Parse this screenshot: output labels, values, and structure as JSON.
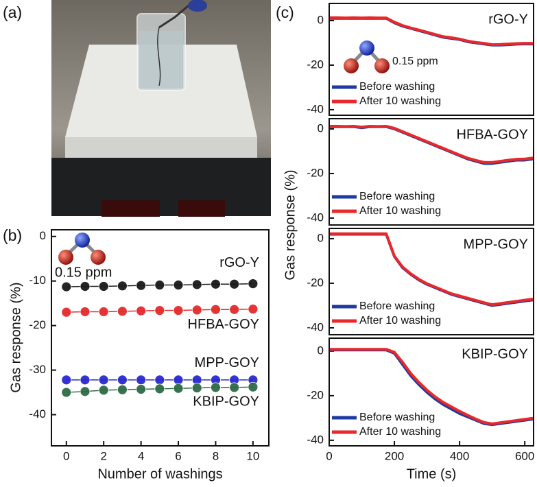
{
  "chart_data": [
    {
      "type": "image",
      "panel": "(a)"
    },
    {
      "type": "line",
      "panel": "(b)",
      "markers": true,
      "x_label": "Number of washings",
      "y_label": "Gas response (%)",
      "annotation": "0.15 ppm",
      "x": [
        0,
        1,
        2,
        3,
        4,
        5,
        6,
        7,
        8,
        9,
        10
      ],
      "xlim": [
        -0.8,
        10.85
      ],
      "xticks": [
        0,
        2,
        4,
        6,
        8,
        10
      ],
      "ylim": [
        -47,
        1.5
      ],
      "yticks": [
        0,
        -10,
        -20,
        -30,
        -40
      ],
      "series": [
        {
          "name": "rGO-Y",
          "color": "#1a1a1a",
          "values": [
            -11.3,
            -11.2,
            -11.2,
            -11.1,
            -11.0,
            -10.9,
            -10.9,
            -10.8,
            -10.7,
            -10.7,
            -10.6
          ]
        },
        {
          "name": "HFBA-GOY",
          "color": "#e52b2b",
          "values": [
            -17.0,
            -16.9,
            -16.9,
            -16.8,
            -16.7,
            -16.6,
            -16.6,
            -16.5,
            -16.4,
            -16.4,
            -16.3
          ]
        },
        {
          "name": "MPP-GOY",
          "color": "#2a2ad0",
          "values": [
            -32.2,
            -32.2,
            -32.2,
            -32.2,
            -32.2,
            -32.2,
            -32.2,
            -32.2,
            -32.2,
            -32.2,
            -32.2
          ]
        },
        {
          "name": "KBIP-GOY",
          "color": "#2e6b45",
          "values": [
            -35.0,
            -34.8,
            -34.5,
            -34.4,
            -34.3,
            -34.2,
            -34.1,
            -34.0,
            -33.9,
            -33.9,
            -33.8
          ]
        }
      ]
    },
    {
      "type": "line",
      "panel": "(c)",
      "title": "rGO-Y",
      "title_color": "#1a1a1a",
      "annotation": "0.15 ppm",
      "y_label": "Gas response (%)",
      "x": [
        0,
        25,
        50,
        75,
        100,
        125,
        150,
        175,
        200,
        225,
        250,
        275,
        300,
        325,
        350,
        375,
        400,
        425,
        450,
        475,
        500,
        525,
        550,
        575,
        600,
        625
      ],
      "xlim": [
        0,
        627
      ],
      "ylim": [
        -42.5,
        7.7
      ],
      "yticks": [
        0,
        -20,
        -40
      ],
      "series": [
        {
          "name": "Before washing",
          "color": "#1f3aa0",
          "values": [
            1,
            1,
            1,
            1,
            1,
            1,
            1,
            1,
            -1,
            -2.5,
            -3.5,
            -4.5,
            -5.5,
            -6.5,
            -7.5,
            -8,
            -8.5,
            -9.5,
            -10,
            -10.5,
            -11,
            -11,
            -10.8,
            -10.6,
            -10.5,
            -10.5
          ]
        },
        {
          "name": "After 10 washing",
          "color": "#e8282a",
          "values": [
            1.3,
            1.3,
            1.2,
            1.3,
            1.2,
            1.3,
            1.2,
            1.2,
            -0.7,
            -2.2,
            -3.3,
            -4.2,
            -5.2,
            -6.2,
            -7.2,
            -7.7,
            -8.3,
            -9.2,
            -9.8,
            -10.2,
            -10.8,
            -10.7,
            -10.5,
            -10.3,
            -10.2,
            -10.2
          ]
        }
      ]
    },
    {
      "type": "line",
      "title": "HFBA-GOY",
      "title_color": "#e52b2b",
      "x": [
        0,
        25,
        50,
        75,
        100,
        125,
        150,
        175,
        200,
        225,
        250,
        275,
        300,
        325,
        350,
        375,
        400,
        425,
        450,
        475,
        500,
        525,
        550,
        575,
        600,
        625
      ],
      "xlim": [
        0,
        627
      ],
      "ylim": [
        -43.1,
        4.6
      ],
      "yticks": [
        0,
        -20,
        -40
      ],
      "series": [
        {
          "name": "Before washing",
          "color": "#1f3aa0",
          "values": [
            1,
            1,
            1,
            1,
            0.5,
            1,
            1,
            1,
            0,
            -1.5,
            -3,
            -4.5,
            -6,
            -7.5,
            -9,
            -10.5,
            -12,
            -13.5,
            -14.5,
            -15.5,
            -15.5,
            -15,
            -14.5,
            -14,
            -14,
            -13.5
          ]
        },
        {
          "name": "After 10 washing",
          "color": "#e8282a",
          "values": [
            1.2,
            1.2,
            1.1,
            1.2,
            0.8,
            1.2,
            1.1,
            1.2,
            0.3,
            -1.2,
            -2.7,
            -4.2,
            -5.7,
            -7.2,
            -8.7,
            -10.2,
            -11.7,
            -13.1,
            -14.1,
            -15,
            -15,
            -14.5,
            -14,
            -13.6,
            -13.5,
            -13
          ]
        }
      ]
    },
    {
      "type": "line",
      "title": "MPP-GOY",
      "title_color": "#2a2ad0",
      "x": [
        0,
        25,
        50,
        75,
        100,
        125,
        150,
        175,
        200,
        225,
        250,
        275,
        300,
        325,
        350,
        375,
        400,
        425,
        450,
        475,
        500,
        525,
        550,
        575,
        600,
        625
      ],
      "xlim": [
        0,
        627
      ],
      "ylim": [
        -43.1,
        4.6
      ],
      "yticks": [
        0,
        -20,
        -40
      ],
      "series": [
        {
          "name": "Before washing",
          "color": "#1f3aa0",
          "values": [
            2,
            2,
            2,
            2,
            2,
            2,
            2,
            2,
            -8,
            -13,
            -16,
            -18.5,
            -20.5,
            -22,
            -23.5,
            -25,
            -26,
            -27,
            -28,
            -29,
            -30,
            -29.5,
            -29,
            -28.5,
            -28,
            -27.5
          ]
        },
        {
          "name": "After 10 washing",
          "color": "#e8282a",
          "values": [
            2.2,
            2.2,
            2.2,
            2.2,
            2.2,
            2.2,
            2.2,
            2.2,
            -7.8,
            -12.7,
            -15.7,
            -18.2,
            -20.2,
            -21.7,
            -23.2,
            -24.7,
            -25.7,
            -26.7,
            -27.7,
            -28.7,
            -29.6,
            -29.1,
            -28.6,
            -28.1,
            -27.6,
            -27.1
          ]
        }
      ]
    },
    {
      "type": "line",
      "title": "KBIP-GOY",
      "title_color": "#2e6b45",
      "x_label": "Time (s)",
      "x": [
        0,
        25,
        50,
        75,
        100,
        125,
        150,
        175,
        200,
        225,
        250,
        275,
        300,
        325,
        350,
        375,
        400,
        425,
        450,
        475,
        500,
        525,
        550,
        575,
        600,
        625
      ],
      "xlim": [
        0,
        627
      ],
      "xticks": [
        0,
        200,
        400,
        600
      ],
      "ylim": [
        -42.5,
        5.8
      ],
      "yticks": [
        0,
        -20,
        -40
      ],
      "series": [
        {
          "name": "Before washing",
          "color": "#1f3aa0",
          "values": [
            0.5,
            0.5,
            0.5,
            0.5,
            0.5,
            0.5,
            0.5,
            0.5,
            -1,
            -6,
            -11,
            -15,
            -18.5,
            -21.5,
            -24,
            -26,
            -28,
            -29.5,
            -31,
            -32.5,
            -33,
            -32.5,
            -32,
            -31.5,
            -31,
            -30.5
          ]
        },
        {
          "name": "After 10 washing",
          "color": "#e8282a",
          "values": [
            0.8,
            0.8,
            0.8,
            0.8,
            0.8,
            0.8,
            0.8,
            0.8,
            -0.5,
            -5,
            -10,
            -14,
            -17.5,
            -20.5,
            -23,
            -25,
            -27,
            -28.8,
            -30.5,
            -32,
            -32.6,
            -32.1,
            -31.6,
            -31.1,
            -30.6,
            -30.1
          ]
        }
      ]
    }
  ]
}
